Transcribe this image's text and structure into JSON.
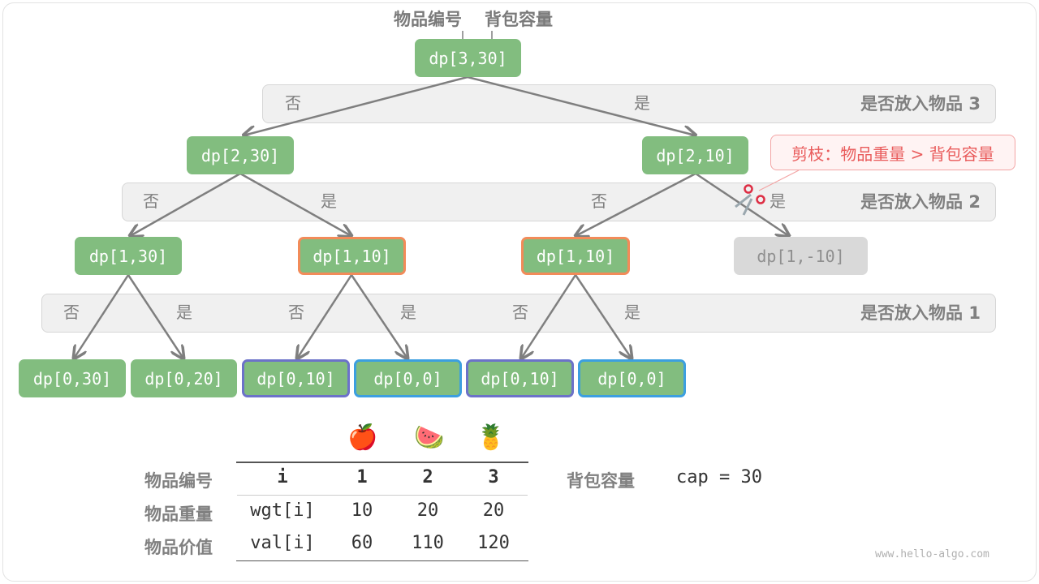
{
  "header": {
    "item_label": "物品编号",
    "cap_label": "背包容量"
  },
  "bands": [
    {
      "title": "是否放入物品 3"
    },
    {
      "title": "是否放入物品 2"
    },
    {
      "title": "是否放入物品 1"
    }
  ],
  "choice": {
    "no": "否",
    "yes": "是"
  },
  "nodes": {
    "root": "dp[3,30]",
    "l2a": "dp[2,30]",
    "l2b": "dp[2,10]",
    "l3a": "dp[1,30]",
    "l3b": "dp[1,10]",
    "l3c": "dp[1,10]",
    "l3d": "dp[1,-10]",
    "l4a": "dp[0,30]",
    "l4b": "dp[0,20]",
    "l4c": "dp[0,10]",
    "l4d": "dp[0,0]",
    "l4e": "dp[0,10]",
    "l4f": "dp[0,0]"
  },
  "highlight_colors": {
    "repeat_subproblem": "#f28b59",
    "dp_0_10": "#6c72c9",
    "dp_0_0": "#3c9fe0",
    "pruned": "#d9d9d9",
    "node": "#82bd7f"
  },
  "callout": "剪枝：物品重量 > 背包容量",
  "table": {
    "fruits": [
      "🍎",
      "🍉",
      "🍍"
    ],
    "row_headers": [
      "物品编号",
      "物品重量",
      "物品价值"
    ],
    "rows": [
      [
        "i",
        "1",
        "2",
        "3"
      ],
      [
        "wgt[i]",
        "10",
        "20",
        "20"
      ],
      [
        "val[i]",
        "60",
        "110",
        "120"
      ]
    ]
  },
  "capacity": {
    "label": "背包容量",
    "value": "cap = 30"
  },
  "watermark": "www.hello-algo.com"
}
